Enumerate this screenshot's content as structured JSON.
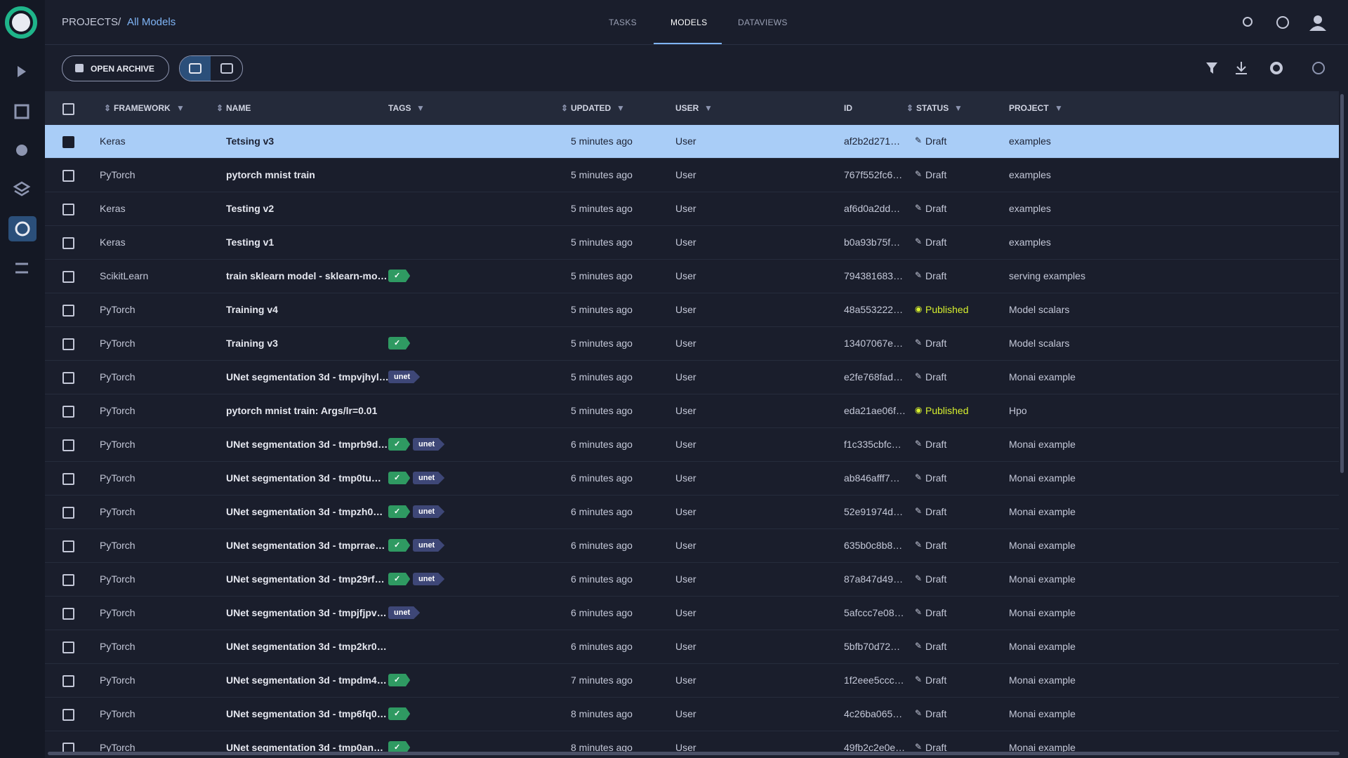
{
  "header": {
    "breadcrumb": [
      "PROJECTS",
      "/",
      "All Models"
    ],
    "tabs": [
      "TASKS",
      "MODELS",
      "DATAVIEWS"
    ],
    "active_tab": 1
  },
  "toolbar": {
    "archive_button": "OPEN ARCHIVE"
  },
  "table": {
    "columns": [
      "FRAMEWORK",
      "NAME",
      "TAGS",
      "UPDATED",
      "USER",
      "ID",
      "STATUS",
      "PROJECT"
    ],
    "selected_row": 0,
    "rows": [
      {
        "framework": "Keras",
        "name": "Tetsing v3",
        "tags": [],
        "updated": "5 minutes ago",
        "user": "User",
        "id": "af2b2d271…",
        "status": "Draft",
        "project": "examples"
      },
      {
        "framework": "PyTorch",
        "name": "pytorch mnist train",
        "tags": [],
        "updated": "5 minutes ago",
        "user": "User",
        "id": "767f552fc6…",
        "status": "Draft",
        "project": "examples"
      },
      {
        "framework": "Keras",
        "name": "Testing v2",
        "tags": [],
        "updated": "5 minutes ago",
        "user": "User",
        "id": "af6d0a2dd…",
        "status": "Draft",
        "project": "examples"
      },
      {
        "framework": "Keras",
        "name": "Testing v1",
        "tags": [],
        "updated": "5 minutes ago",
        "user": "User",
        "id": "b0a93b75f…",
        "status": "Draft",
        "project": "examples"
      },
      {
        "framework": "ScikitLearn",
        "name": "train sklearn model - sklearn-mo…",
        "tags": [
          "✓"
        ],
        "updated": "5 minutes ago",
        "user": "User",
        "id": "794381683…",
        "status": "Draft",
        "project": "serving examples"
      },
      {
        "framework": "PyTorch",
        "name": "Training v4",
        "tags": [],
        "updated": "5 minutes ago",
        "user": "User",
        "id": "48a553222…",
        "status": "Published",
        "project": "Model scalars"
      },
      {
        "framework": "PyTorch",
        "name": "Training v3",
        "tags": [
          "✓"
        ],
        "updated": "5 minutes ago",
        "user": "User",
        "id": "13407067e…",
        "status": "Draft",
        "project": "Model scalars"
      },
      {
        "framework": "PyTorch",
        "name": "UNet segmentation 3d - tmpvjhyl…",
        "tags": [
          "unet"
        ],
        "updated": "5 minutes ago",
        "user": "User",
        "id": "e2fe768fad…",
        "status": "Draft",
        "project": "Monai example"
      },
      {
        "framework": "PyTorch",
        "name": "pytorch mnist train: Args/lr=0.01",
        "tags": [],
        "updated": "5 minutes ago",
        "user": "User",
        "id": "eda21ae06f…",
        "status": "Published",
        "project": "Hpo"
      },
      {
        "framework": "PyTorch",
        "name": "UNet segmentation 3d - tmprb9d…",
        "tags": [
          "✓",
          "unet"
        ],
        "updated": "6 minutes ago",
        "user": "User",
        "id": "f1c335cbfc…",
        "status": "Draft",
        "project": "Monai example"
      },
      {
        "framework": "PyTorch",
        "name": "UNet segmentation 3d - tmp0tu…",
        "tags": [
          "✓",
          "unet"
        ],
        "updated": "6 minutes ago",
        "user": "User",
        "id": "ab846afff7…",
        "status": "Draft",
        "project": "Monai example"
      },
      {
        "framework": "PyTorch",
        "name": "UNet segmentation 3d - tmpzh0…",
        "tags": [
          "✓",
          "unet"
        ],
        "updated": "6 minutes ago",
        "user": "User",
        "id": "52e91974d…",
        "status": "Draft",
        "project": "Monai example"
      },
      {
        "framework": "PyTorch",
        "name": "UNet segmentation 3d - tmprrae…",
        "tags": [
          "✓",
          "unet"
        ],
        "updated": "6 minutes ago",
        "user": "User",
        "id": "635b0c8b8…",
        "status": "Draft",
        "project": "Monai example"
      },
      {
        "framework": "PyTorch",
        "name": "UNet segmentation 3d - tmp29rf…",
        "tags": [
          "✓",
          "unet"
        ],
        "updated": "6 minutes ago",
        "user": "User",
        "id": "87a847d49…",
        "status": "Draft",
        "project": "Monai example"
      },
      {
        "framework": "PyTorch",
        "name": "UNet segmentation 3d - tmpjfjpv…",
        "tags": [
          "unet"
        ],
        "updated": "6 minutes ago",
        "user": "User",
        "id": "5afccc7e08…",
        "status": "Draft",
        "project": "Monai example"
      },
      {
        "framework": "PyTorch",
        "name": "UNet segmentation 3d - tmp2kr0…",
        "tags": [],
        "updated": "6 minutes ago",
        "user": "User",
        "id": "5bfb70d72…",
        "status": "Draft",
        "project": "Monai example"
      },
      {
        "framework": "PyTorch",
        "name": "UNet segmentation 3d - tmpdm4…",
        "tags": [
          "✓"
        ],
        "updated": "7 minutes ago",
        "user": "User",
        "id": "1f2eee5ccc…",
        "status": "Draft",
        "project": "Monai example"
      },
      {
        "framework": "PyTorch",
        "name": "UNet segmentation 3d - tmp6fq0…",
        "tags": [
          "✓"
        ],
        "updated": "8 minutes ago",
        "user": "User",
        "id": "4c26ba065…",
        "status": "Draft",
        "project": "Monai example"
      },
      {
        "framework": "PyTorch",
        "name": "UNet segmentation 3d - tmp0an…",
        "tags": [
          "✓"
        ],
        "updated": "8 minutes ago",
        "user": "User",
        "id": "49fb2c2e0e…",
        "status": "Draft",
        "project": "Monai example"
      }
    ]
  }
}
